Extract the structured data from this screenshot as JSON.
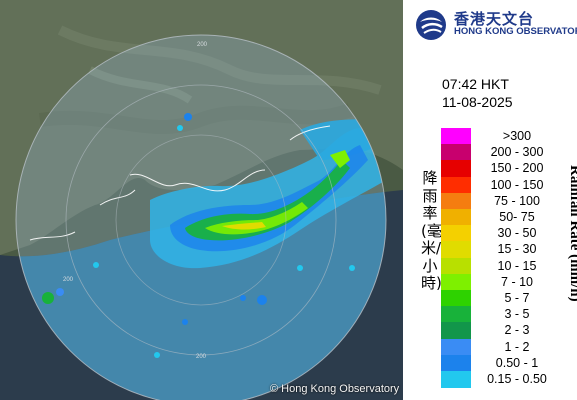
{
  "observation": {
    "time": "07:42 HKT",
    "date": "11-08-2025"
  },
  "organization": {
    "name_zh": "香港天文台",
    "name_en": "HONG KONG OBSERVATORY"
  },
  "copyright": "© Hong Kong Observatory",
  "legend": {
    "title_en": "Rainfall Rate (mm/h)",
    "title_zh": "降雨率(毫米/小時)",
    "classes": [
      {
        "label": ">300",
        "color": "#ff00ff"
      },
      {
        "label": "200 - 300",
        "color": "#c8006e"
      },
      {
        "label": "150 - 200",
        "color": "#e60000"
      },
      {
        "label": "100 - 150",
        "color": "#ff2d00"
      },
      {
        "label": "75 - 100",
        "color": "#f57d10"
      },
      {
        "label": "50- 75",
        "color": "#f0b000"
      },
      {
        "label": "30 - 50",
        "color": "#f4d000"
      },
      {
        "label": "15 - 30",
        "color": "#e0dc00"
      },
      {
        "label": "10 - 15",
        "color": "#b8e000"
      },
      {
        "label": "7 - 10",
        "color": "#7ef000"
      },
      {
        "label": "5 - 7",
        "color": "#2ed200"
      },
      {
        "label": "3 - 5",
        "color": "#18b23a"
      },
      {
        "label": "2 - 3",
        "color": "#12964a"
      },
      {
        "label": "1 - 2",
        "color": "#3a8cf4"
      },
      {
        "label": "0.50 - 1",
        "color": "#1c82ec"
      },
      {
        "label": "0.15 - 0.50",
        "color": "#22c8ee"
      }
    ]
  },
  "map": {
    "range_ring_label": "200"
  }
}
